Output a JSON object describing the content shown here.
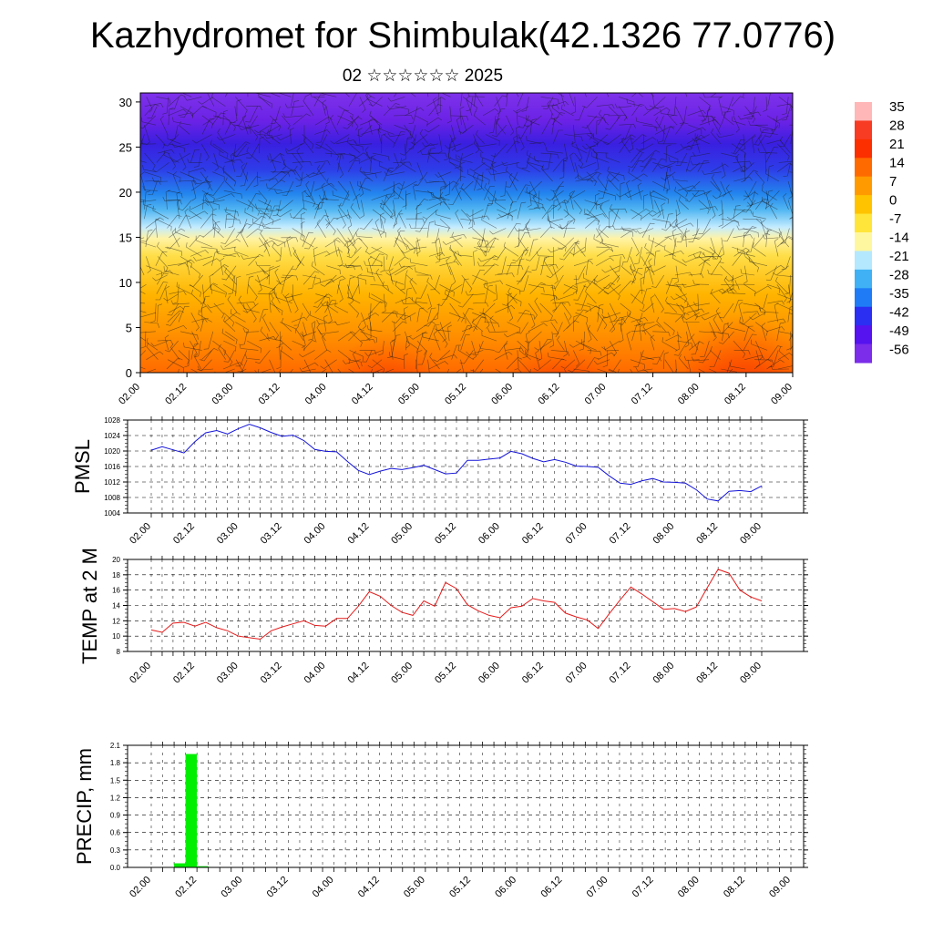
{
  "title": "Kazhydromet for Shimbulak(42.1326 77.0776)",
  "subtitle": "02 ☆☆☆☆☆☆ 2025",
  "chart_data": [
    {
      "type": "heatmap",
      "name_label": "",
      "x_ticklabels": [
        "02.00",
        "02.12",
        "03.00",
        "03.12",
        "04.00",
        "04.12",
        "05.00",
        "05.12",
        "06.00",
        "06.12",
        "07.00",
        "07.12",
        "08.00",
        "08.12",
        "09.00"
      ],
      "y_ticklabels": [
        "0",
        "5",
        "10",
        "15",
        "20",
        "25",
        "30"
      ],
      "ylim": [
        0,
        31
      ],
      "colorbar": {
        "labels": [
          "35",
          "28",
          "21",
          "14",
          "7",
          "0",
          "-7",
          "-14",
          "-21",
          "-28",
          "-35",
          "-42",
          "-49",
          "-56"
        ],
        "colors": [
          "#ffb7b7",
          "#f83b23",
          "#fb2f00",
          "#ff6a00",
          "#ff9a00",
          "#ffc300",
          "#ffe53a",
          "#fff7a0",
          "#b4e8ff",
          "#3fb1f4",
          "#1f7cf6",
          "#2b2ff2",
          "#5613f0",
          "#7b2de9"
        ]
      },
      "overlay": "wind barbs"
    },
    {
      "type": "line",
      "ylabel": "PMSL",
      "ylim": [
        1004,
        1028
      ],
      "y_ticklabels": [
        "1004",
        "1008",
        "1012",
        "1016",
        "1020",
        "1024",
        "1028"
      ],
      "x_ticklabels": [
        "02.00",
        "02.12",
        "03.00",
        "03.12",
        "04.00",
        "04.12",
        "05.00",
        "05.12",
        "06.00",
        "06.12",
        "07.00",
        "07.12",
        "08.00",
        "08.12",
        "09.00"
      ],
      "series_color": "#1414d8",
      "x": [
        0,
        3,
        6,
        9,
        12,
        15,
        18,
        21,
        24,
        27,
        30,
        33,
        36,
        39,
        42,
        45,
        48,
        51,
        54,
        57,
        60,
        63,
        66,
        69,
        72,
        75,
        78,
        81,
        84,
        87,
        90,
        93,
        96,
        99,
        102,
        105,
        108,
        111,
        114,
        117,
        120,
        123,
        126,
        129,
        132,
        135,
        138,
        141,
        144,
        147,
        150,
        153,
        156,
        159,
        162,
        165,
        168
      ],
      "values": [
        1020.2,
        1021.1,
        1020.3,
        1019.5,
        1022.4,
        1024.7,
        1025.3,
        1024.4,
        1025.8,
        1026.9,
        1026.0,
        1024.8,
        1023.8,
        1024.1,
        1022.7,
        1020.4,
        1019.9,
        1019.8,
        1017.3,
        1015.0,
        1013.9,
        1014.8,
        1015.5,
        1015.2,
        1015.7,
        1016.3,
        1015.2,
        1014.1,
        1014.3,
        1017.6,
        1017.6,
        1017.9,
        1018.2,
        1019.9,
        1019.3,
        1018.1,
        1017.2,
        1017.8,
        1017.1,
        1016.1,
        1016.0,
        1015.8,
        1013.6,
        1011.7,
        1011.4,
        1012.3,
        1012.9,
        1012.0,
        1011.9,
        1011.7,
        1010.0,
        1007.6,
        1007.1,
        1009.6,
        1009.8,
        1009.5,
        1011.0
      ]
    },
    {
      "type": "line",
      "ylabel": "TEMP at 2 M",
      "ylim": [
        8,
        20
      ],
      "y_ticklabels": [
        "8",
        "10",
        "12",
        "14",
        "16",
        "18",
        "20"
      ],
      "x_ticklabels": [
        "02.00",
        "02.12",
        "03.00",
        "03.12",
        "04.00",
        "04.12",
        "05.00",
        "05.12",
        "06.00",
        "06.12",
        "07.00",
        "07.12",
        "08.00",
        "08.12",
        "09.00"
      ],
      "series_color": "#e41a1a",
      "x": [
        0,
        3,
        6,
        9,
        12,
        15,
        18,
        21,
        24,
        27,
        30,
        33,
        36,
        39,
        42,
        45,
        48,
        51,
        54,
        57,
        60,
        63,
        66,
        69,
        72,
        75,
        78,
        81,
        84,
        87,
        90,
        93,
        96,
        99,
        102,
        105,
        108,
        111,
        114,
        117,
        120,
        123,
        126,
        129,
        132,
        135,
        138,
        141,
        144,
        147,
        150,
        153,
        156,
        159,
        162,
        165,
        168
      ],
      "values": [
        10.8,
        10.5,
        11.7,
        11.8,
        11.3,
        11.8,
        11.1,
        10.7,
        10.0,
        9.8,
        9.6,
        10.7,
        11.2,
        11.6,
        12.0,
        11.4,
        11.3,
        12.3,
        12.3,
        13.9,
        15.8,
        15.2,
        14.0,
        13.1,
        12.7,
        14.6,
        13.9,
        17.0,
        16.2,
        14.1,
        13.3,
        12.7,
        12.4,
        13.7,
        13.9,
        14.9,
        14.6,
        14.4,
        13.0,
        12.5,
        12.1,
        11.0,
        12.9,
        14.7,
        16.4,
        15.5,
        14.5,
        13.5,
        13.6,
        13.2,
        13.8,
        16.3,
        18.7,
        18.2,
        16.0,
        15.1,
        14.6
      ]
    },
    {
      "type": "bar",
      "ylabel": "PRECIP, mm",
      "ylim": [
        0,
        2.1
      ],
      "y_ticklabels": [
        "0.0",
        "0.3",
        "0.6",
        "0.9",
        "1.2",
        "1.5",
        "1.8",
        "2.1"
      ],
      "x_ticklabels": [
        "02.00",
        "02.12",
        "03.00",
        "03.12",
        "04.00",
        "04.12",
        "05.00",
        "05.12",
        "06.00",
        "06.12",
        "07.00",
        "07.12",
        "08.00",
        "08.12",
        "09.00"
      ],
      "series_color": "#00ee00",
      "bars": [
        {
          "x_start": 6,
          "x_end": 9,
          "value": 0.07
        },
        {
          "x_start": 9,
          "x_end": 12,
          "value": 1.95
        },
        {
          "x_start": 12,
          "x_end": 15,
          "value": 0.02
        }
      ]
    }
  ]
}
